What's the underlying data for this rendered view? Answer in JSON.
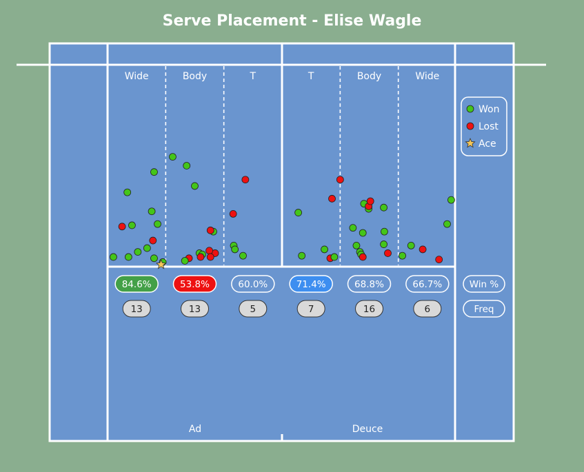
{
  "title": "Serve Placement - Elise Wagle",
  "colors": {
    "background": "#8aae8f",
    "court": "#6a95cf",
    "lines": "#ffffff",
    "won": "#44c51a",
    "lost": "#ee1111",
    "ace": "#f3c65a",
    "pill_high": "#43a047",
    "pill_low": "#ee1111",
    "pill_mid": "#3d8ef0",
    "freq_pill": "#d9d9d9"
  },
  "legend": {
    "won": "Won",
    "lost": "Lost",
    "ace": "Ace"
  },
  "row_labels": {
    "win_pct": "Win %",
    "freq": "Freq"
  },
  "side_labels": {
    "ad": "Ad",
    "deuce": "Deuce"
  },
  "chart_data": {
    "type": "scatter",
    "title": "Serve Placement - Elise Wagle",
    "zones": [
      {
        "side": "Ad",
        "label": "Wide",
        "win_pct": "84.6%",
        "freq": "13",
        "style": "high"
      },
      {
        "side": "Ad",
        "label": "Body",
        "win_pct": "53.8%",
        "freq": "13",
        "style": "low"
      },
      {
        "side": "Ad",
        "label": "T",
        "win_pct": "60.0%",
        "freq": "5",
        "style": "outline"
      },
      {
        "side": "Deuce",
        "label": "T",
        "win_pct": "71.4%",
        "freq": "7",
        "style": "mid"
      },
      {
        "side": "Deuce",
        "label": "Body",
        "win_pct": "68.8%",
        "freq": "16",
        "style": "outline"
      },
      {
        "side": "Deuce",
        "label": "Wide",
        "win_pct": "66.7%",
        "freq": "6",
        "style": "outline"
      }
    ],
    "x_range": [
      0,
      6
    ],
    "y_range": [
      0,
      1
    ],
    "points": [
      {
        "x": 0.1,
        "y": 0.06,
        "result": "won"
      },
      {
        "x": 0.36,
        "y": 0.06,
        "result": "won"
      },
      {
        "x": 0.52,
        "y": 0.1,
        "result": "won"
      },
      {
        "x": 0.68,
        "y": 0.13,
        "result": "won"
      },
      {
        "x": 0.78,
        "y": 0.19,
        "result": "lost"
      },
      {
        "x": 0.25,
        "y": 0.3,
        "result": "lost"
      },
      {
        "x": 0.42,
        "y": 0.31,
        "result": "won"
      },
      {
        "x": 0.86,
        "y": 0.32,
        "result": "won"
      },
      {
        "x": 0.76,
        "y": 0.42,
        "result": "won"
      },
      {
        "x": 0.34,
        "y": 0.57,
        "result": "won"
      },
      {
        "x": 0.8,
        "y": 0.73,
        "result": "won"
      },
      {
        "x": 0.8,
        "y": 0.05,
        "result": "won"
      },
      {
        "x": 0.95,
        "y": 0.02,
        "result": "won"
      },
      {
        "x": 0.92,
        "y": 0.0,
        "result": "ace"
      },
      {
        "x": 1.12,
        "y": 0.85,
        "result": "won"
      },
      {
        "x": 1.36,
        "y": 0.78,
        "result": "won"
      },
      {
        "x": 1.5,
        "y": 0.62,
        "result": "won"
      },
      {
        "x": 1.82,
        "y": 0.26,
        "result": "won"
      },
      {
        "x": 1.77,
        "y": 0.27,
        "result": "lost"
      },
      {
        "x": 1.58,
        "y": 0.09,
        "result": "won"
      },
      {
        "x": 1.63,
        "y": 0.08,
        "result": "won"
      },
      {
        "x": 1.85,
        "y": 0.09,
        "result": "lost"
      },
      {
        "x": 1.75,
        "y": 0.11,
        "result": "lost"
      },
      {
        "x": 1.77,
        "y": 0.06,
        "result": "lost"
      },
      {
        "x": 1.6,
        "y": 0.06,
        "result": "lost"
      },
      {
        "x": 1.4,
        "y": 0.05,
        "result": "lost"
      },
      {
        "x": 1.33,
        "y": 0.03,
        "result": "won"
      },
      {
        "x": 2.37,
        "y": 0.67,
        "result": "lost"
      },
      {
        "x": 2.16,
        "y": 0.4,
        "result": "lost"
      },
      {
        "x": 2.17,
        "y": 0.15,
        "result": "won"
      },
      {
        "x": 2.19,
        "y": 0.12,
        "result": "won"
      },
      {
        "x": 2.33,
        "y": 0.07,
        "result": "won"
      },
      {
        "x": 3.28,
        "y": 0.41,
        "result": "won"
      },
      {
        "x": 3.34,
        "y": 0.07,
        "result": "won"
      },
      {
        "x": 3.73,
        "y": 0.12,
        "result": "won"
      },
      {
        "x": 3.83,
        "y": 0.05,
        "result": "lost"
      },
      {
        "x": 3.9,
        "y": 0.06,
        "result": "won"
      },
      {
        "x": 3.86,
        "y": 0.52,
        "result": "lost"
      },
      {
        "x": 4.0,
        "y": 0.67,
        "result": "lost"
      },
      {
        "x": 4.22,
        "y": 0.29,
        "result": "won"
      },
      {
        "x": 4.39,
        "y": 0.25,
        "result": "won"
      },
      {
        "x": 4.28,
        "y": 0.15,
        "result": "won"
      },
      {
        "x": 4.34,
        "y": 0.1,
        "result": "won"
      },
      {
        "x": 4.36,
        "y": 0.08,
        "result": "won"
      },
      {
        "x": 4.39,
        "y": 0.06,
        "result": "lost"
      },
      {
        "x": 4.41,
        "y": 0.48,
        "result": "won"
      },
      {
        "x": 4.49,
        "y": 0.44,
        "result": "won"
      },
      {
        "x": 4.49,
        "y": 0.46,
        "result": "lost"
      },
      {
        "x": 4.52,
        "y": 0.5,
        "result": "lost"
      },
      {
        "x": 4.75,
        "y": 0.45,
        "result": "won"
      },
      {
        "x": 4.76,
        "y": 0.26,
        "result": "won"
      },
      {
        "x": 4.75,
        "y": 0.16,
        "result": "won"
      },
      {
        "x": 4.82,
        "y": 0.09,
        "result": "lost"
      },
      {
        "x": 5.07,
        "y": 0.07,
        "result": "won"
      },
      {
        "x": 5.22,
        "y": 0.15,
        "result": "won"
      },
      {
        "x": 5.42,
        "y": 0.12,
        "result": "lost"
      },
      {
        "x": 5.7,
        "y": 0.04,
        "result": "lost"
      },
      {
        "x": 5.84,
        "y": 0.32,
        "result": "won"
      },
      {
        "x": 5.91,
        "y": 0.51,
        "result": "won"
      }
    ]
  }
}
